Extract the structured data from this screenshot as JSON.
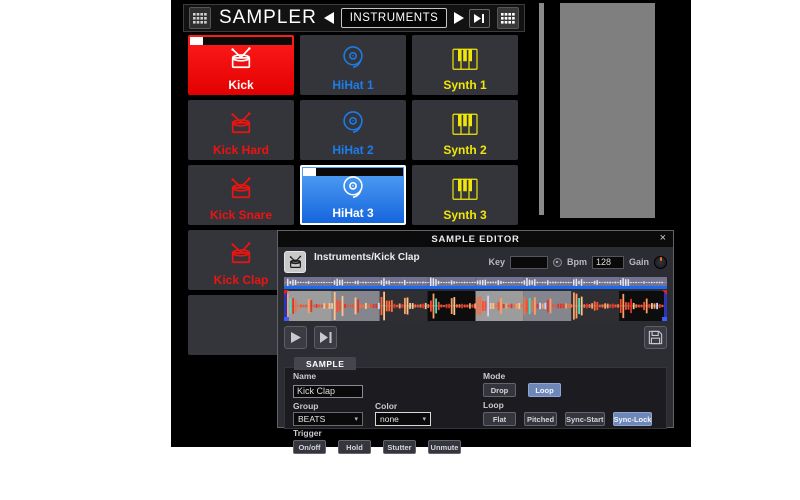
{
  "header": {
    "title": "SAMPLER",
    "bank_label": "INSTRUMENTS"
  },
  "pads": [
    {
      "label": "Kick",
      "group": "kick",
      "active": true,
      "playing": true
    },
    {
      "label": "HiHat 1",
      "group": "hihat",
      "active": false
    },
    {
      "label": "Synth 1",
      "group": "synth",
      "active": false
    },
    {
      "label": "Kick Hard",
      "group": "kick",
      "active": false
    },
    {
      "label": "HiHat 2",
      "group": "hihat",
      "active": false
    },
    {
      "label": "Synth 2",
      "group": "synth",
      "active": false
    },
    {
      "label": "Kick Snare",
      "group": "kick",
      "active": false
    },
    {
      "label": "HiHat 3",
      "group": "hihat",
      "active": true,
      "playing": true
    },
    {
      "label": "Synth 3",
      "group": "synth",
      "active": false
    },
    {
      "label": "Kick Clap",
      "group": "kick",
      "active": false
    },
    {
      "label": "",
      "group": "empty",
      "active": false
    },
    {
      "label": "",
      "group": "empty",
      "active": false
    },
    {
      "label": "",
      "group": "empty",
      "active": false
    },
    {
      "label": "",
      "group": "empty",
      "active": false
    },
    {
      "label": "",
      "group": "empty",
      "active": false
    }
  ],
  "editor": {
    "title": "SAMPLE EDITOR",
    "close_icon": "×",
    "sample_path": "Instruments/Kick Clap",
    "key_label": "Key",
    "key_value": "",
    "bpm_label": "Bpm",
    "bpm_value": "128",
    "gain_label": "Gain",
    "tab_label": "SAMPLE",
    "form": {
      "name_label": "Name",
      "name_value": "Kick Clap",
      "group_label": "Group",
      "group_value": "BEATS",
      "color_label": "Color",
      "color_value": "none",
      "trigger_label": "Trigger",
      "mode_label": "Mode",
      "loop_label": "Loop"
    },
    "trigger_buttons": [
      {
        "label": "On/off"
      },
      {
        "label": "Hold"
      },
      {
        "label": "Stutter"
      },
      {
        "label": "Unmute"
      }
    ],
    "mode_buttons": [
      {
        "label": "Drop",
        "active": false
      },
      {
        "label": "Loop",
        "active": true
      }
    ],
    "loop_buttons": [
      {
        "label": "Flat",
        "active": false
      },
      {
        "label": "Pitched",
        "active": false
      },
      {
        "label": "Sync-Start",
        "active": false
      },
      {
        "label": "Sync-Lock",
        "active": true
      }
    ]
  },
  "icons": {
    "grid": "grid-icon",
    "prev": "arrow-left-icon",
    "next": "arrow-right-icon",
    "skip_end": "skip-to-end-icon",
    "play": "play-icon",
    "save": "save-icon",
    "close": "close-icon",
    "drum": "drum-icon",
    "cymbal": "cymbal-icon",
    "piano": "piano-keys-icon",
    "gain_knob": "knob-icon",
    "dropdown_arrow": "▾"
  },
  "colors": {
    "kick_text": "#ed1410",
    "hihat_text": "#1d7ce8",
    "synth_text": "#f0e60a",
    "pad_active_red": "#f10000",
    "pad_active_blue": "#2f85ee",
    "button_active": "#6d87b8",
    "overview_strip": "#73738f",
    "overview_line": "#1b6bf2"
  }
}
